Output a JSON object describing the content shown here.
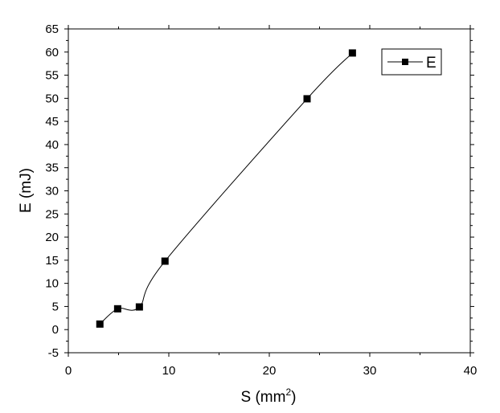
{
  "chart_data": {
    "type": "line",
    "xlabel": "S (mm",
    "xlabel_sup": "2",
    "xlabel_tail": ")",
    "ylabel": "E (mJ)",
    "xlim": [
      0,
      40
    ],
    "ylim": [
      -5,
      65
    ],
    "xticks": [
      0,
      10,
      20,
      30,
      40
    ],
    "yticks": [
      -5,
      0,
      5,
      10,
      15,
      20,
      25,
      30,
      35,
      40,
      45,
      50,
      55,
      60,
      65
    ],
    "grid": false,
    "legend_position": "top-right",
    "series": [
      {
        "name": "E",
        "marker": "square",
        "color": "#000000",
        "x": [
          3.14,
          4.91,
          7.07,
          9.62,
          23.76,
          28.27
        ],
        "y": [
          1.2,
          4.5,
          4.9,
          14.8,
          49.9,
          59.8
        ]
      }
    ]
  }
}
